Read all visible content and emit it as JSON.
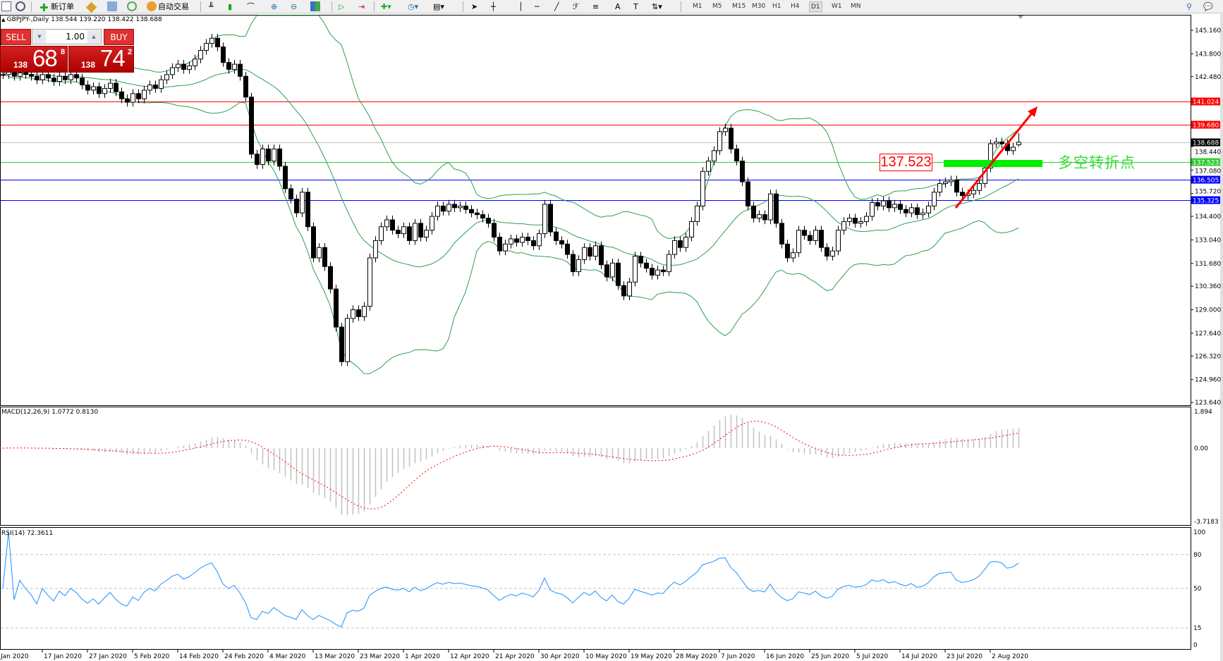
{
  "toolbar": {
    "new_order": "新订单",
    "auto_trading": "自动交易",
    "timeframes": [
      "M1",
      "M5",
      "M15",
      "M30",
      "H1",
      "H4",
      "D1",
      "W1",
      "MN"
    ],
    "active_timeframe": "D1"
  },
  "chart": {
    "header": "GBPJPY-,Daily  138.544 139.220 138.422 138.688"
  },
  "trade_panel": {
    "sell_label": "SELL",
    "buy_label": "BUY",
    "lot": "1.00",
    "sell": {
      "prefix": "138",
      "big": "68",
      "sup": "8"
    },
    "buy": {
      "prefix": "138",
      "big": "74",
      "sup": "2"
    }
  },
  "annotation": {
    "level_label": "137.523",
    "text": "多空转折点",
    "arrow_color": "#ff0000",
    "zone_color": "#00ee00"
  },
  "indicators": {
    "macd_label": "MACD(12,26,9) 1.0772 0.8130",
    "rsi_label": "RSI(14) 72.3611"
  },
  "chart_data": {
    "type": "candlestick",
    "symbol": "GBPJPY-",
    "period": "Daily",
    "ohlc_last": {
      "open": 138.544,
      "high": 139.22,
      "low": 138.422,
      "close": 138.688
    },
    "ylim": [
      123.64,
      145.16
    ],
    "price_ticks": [
      "145.160",
      "143.800",
      "142.480",
      "138.440",
      "137.080",
      "135.720",
      "134.400",
      "133.040",
      "131.680",
      "130.360",
      "129.000",
      "127.640",
      "126.320",
      "124.960",
      "123.640"
    ],
    "horizontal_lines": [
      {
        "value": "141.024",
        "color": "#ff0000"
      },
      {
        "value": "139.680",
        "color": "#ff0000"
      },
      {
        "value": "138.688",
        "color": "#000000",
        "kind": "bid"
      },
      {
        "value": "137.523",
        "color": "#33cc33"
      },
      {
        "value": "136.505",
        "color": "#0000ff"
      },
      {
        "value": "135.325",
        "color": "#0000ff"
      }
    ],
    "date_labels": [
      "Jan 2020",
      "17 Jan 2020",
      "27 Jan 2020",
      "5 Feb 2020",
      "14 Feb 2020",
      "24 Feb 2020",
      "4 Mar 2020",
      "13 Mar 2020",
      "23 Mar 2020",
      "1 Apr 2020",
      "12 Apr 2020",
      "21 Apr 2020",
      "30 Apr 2020",
      "10 May 2020",
      "19 May 2020",
      "28 May 2020",
      "7 Jun 2020",
      "16 Jun 2020",
      "25 Jun 2020",
      "5 Jul 2020",
      "14 Jul 2020",
      "23 Jul 2020",
      "2 Aug 2020"
    ],
    "closes": [
      142.6,
      142.8,
      142.5,
      142.7,
      142.6,
      142.5,
      142.3,
      142.6,
      142.4,
      142.2,
      142.5,
      142.3,
      142.6,
      142.4,
      142.0,
      141.7,
      141.9,
      141.5,
      141.8,
      142.1,
      141.6,
      141.2,
      141.0,
      141.5,
      141.2,
      141.7,
      142.0,
      141.8,
      142.3,
      142.6,
      143.0,
      143.2,
      142.9,
      143.1,
      143.5,
      144.0,
      144.4,
      144.7,
      144.2,
      143.3,
      142.9,
      143.2,
      142.5,
      141.3,
      138.0,
      137.4,
      138.3,
      137.6,
      138.3,
      137.3,
      136.0,
      135.4,
      134.6,
      135.8,
      133.8,
      132.0,
      132.6,
      131.5,
      130.2,
      128.0,
      126.0,
      128.5,
      129.0,
      128.6,
      129.2,
      132.0,
      133.0,
      133.8,
      134.2,
      133.6,
      133.4,
      133.8,
      133.0,
      134.0,
      133.2,
      133.6,
      134.4,
      135.0,
      134.7,
      135.1,
      134.9,
      135.0,
      134.8,
      134.6,
      134.5,
      134.3,
      134.0,
      133.2,
      132.4,
      132.8,
      133.1,
      132.9,
      133.2,
      133.0,
      132.7,
      133.4,
      135.1,
      133.5,
      133.0,
      132.8,
      132.2,
      131.2,
      131.9,
      132.6,
      132.1,
      132.7,
      131.6,
      130.9,
      131.7,
      130.4,
      129.8,
      130.6,
      132.1,
      131.7,
      131.4,
      131.0,
      131.3,
      131.2,
      132.2,
      133.0,
      132.6,
      133.2,
      134.1,
      135.0,
      137.0,
      137.6,
      138.2,
      139.3,
      139.5,
      138.3,
      137.6,
      136.4,
      135.0,
      134.3,
      134.5,
      134.2,
      135.7,
      134.0,
      132.8,
      132.0,
      132.3,
      133.6,
      133.3,
      133.0,
      133.6,
      132.6,
      132.1,
      132.4,
      133.6,
      134.1,
      134.3,
      134.0,
      134.1,
      134.4,
      135.2,
      135.0,
      135.3,
      134.9,
      135.1,
      134.8,
      134.6,
      134.9,
      134.5,
      134.6,
      135.0,
      135.8,
      136.3,
      136.4,
      136.5,
      135.8,
      135.6,
      135.7,
      135.9,
      136.3,
      137.2,
      138.6,
      138.7,
      138.6,
      138.2,
      138.4,
      138.688
    ],
    "bollinger": {
      "period": 20,
      "deviation": 2,
      "color": "#2e9e4e"
    },
    "macd": {
      "fast": 12,
      "slow": 26,
      "signal": 9,
      "main": 1.0772,
      "signal_value": 0.813,
      "ylim": [
        -3.7183,
        1.894
      ],
      "ticks": [
        "1.894",
        "0.00",
        "-3.7183"
      ],
      "signal_color": "#ff0000",
      "histogram_color": "#c0c0c0"
    },
    "rsi": {
      "period": 14,
      "value": 72.3611,
      "levels": [
        "80",
        "50",
        "15"
      ],
      "ticks": [
        "100",
        "80",
        "50",
        "15",
        "0"
      ],
      "color": "#1e90ff"
    }
  }
}
